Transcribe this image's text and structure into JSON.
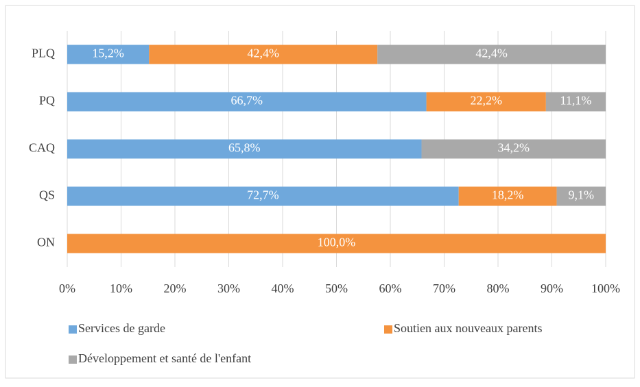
{
  "chart_data": {
    "type": "stacked_barh",
    "categories": [
      "PLQ",
      "PQ",
      "CAQ",
      "QS",
      "ON"
    ],
    "series": [
      {
        "name": "Services de garde",
        "color": "#6fa8dc",
        "values": [
          15.2,
          66.7,
          65.8,
          72.7,
          null
        ],
        "value_labels": [
          "15,2%",
          "66,7%",
          "65,8%",
          "72,7%",
          null
        ]
      },
      {
        "name": "Soutien aux nouveaux parents",
        "color": "#f4933f",
        "values": [
          42.4,
          22.2,
          null,
          18.2,
          100
        ],
        "value_labels": [
          "42,4%",
          "22,2%",
          null,
          "18,2%",
          "100,0%"
        ]
      },
      {
        "name": "Développement et santé de l'enfant",
        "color": "#a9a9a9",
        "values": [
          42.4,
          11.1,
          34.2,
          9.1,
          null
        ],
        "value_labels": [
          "42,4%",
          "11,1%",
          "34,2%",
          "9,1%",
          null
        ]
      }
    ],
    "xlim": [
      0,
      100
    ],
    "xticks": [
      {
        "value": 0,
        "label": "0%"
      },
      {
        "value": 10,
        "label": "10%"
      },
      {
        "value": 20,
        "label": "20%"
      },
      {
        "value": 30,
        "label": "30%"
      },
      {
        "value": 40,
        "label": "40%"
      },
      {
        "value": 50,
        "label": "50%"
      },
      {
        "value": 60,
        "label": "60%"
      },
      {
        "value": 70,
        "label": "70%"
      },
      {
        "value": 80,
        "label": "80%"
      },
      {
        "value": 90,
        "label": "90%"
      },
      {
        "value": 100,
        "label": "100%"
      }
    ],
    "grid": true,
    "legend": "bottom"
  }
}
